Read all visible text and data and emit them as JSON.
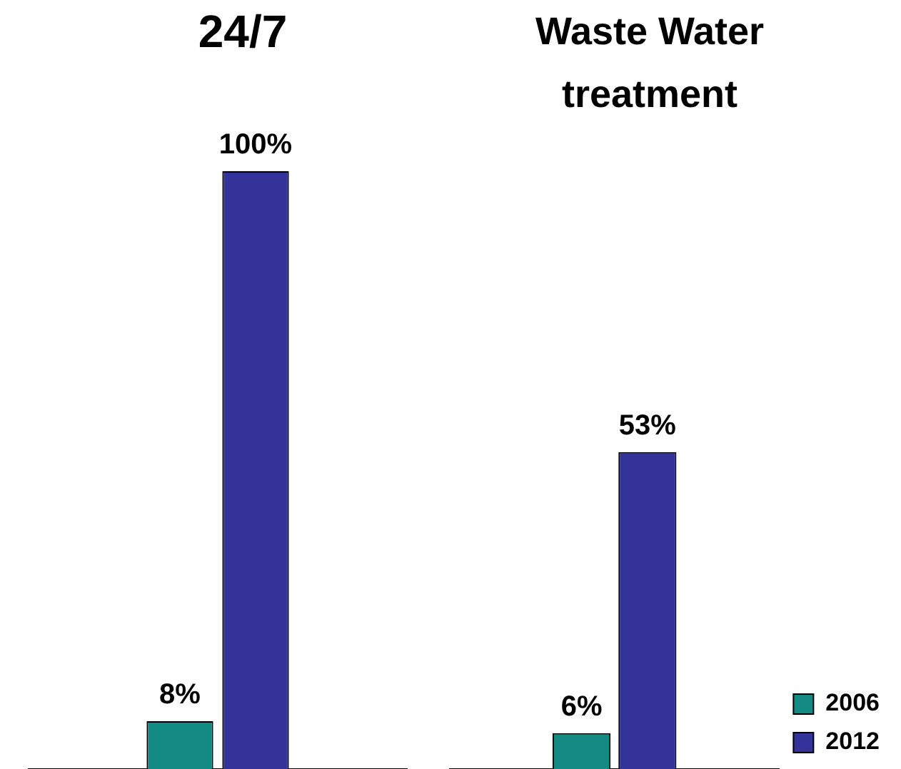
{
  "chart_data": [
    {
      "type": "bar",
      "title": "24/7",
      "categories": [
        null
      ],
      "series": [
        {
          "color": "#138a84",
          "values": [
            8
          ],
          "value_labels": [
            "8%"
          ]
        },
        {
          "color": "#333399",
          "values": [
            100
          ],
          "value_labels": [
            "100%"
          ]
        }
      ],
      "tick_labels": false,
      "legend": false
    },
    {
      "type": "bar",
      "title": "Waste Water treatment",
      "categories": [
        null
      ],
      "series": [
        {
          "name": "2006",
          "color": "#138a84",
          "values": [
            6
          ],
          "value_labels": [
            "6%"
          ]
        },
        {
          "name": "2012",
          "color": "#333399",
          "values": [
            53
          ],
          "value_labels": [
            "53%"
          ]
        }
      ],
      "tick_labels": false,
      "legend": "right"
    }
  ]
}
